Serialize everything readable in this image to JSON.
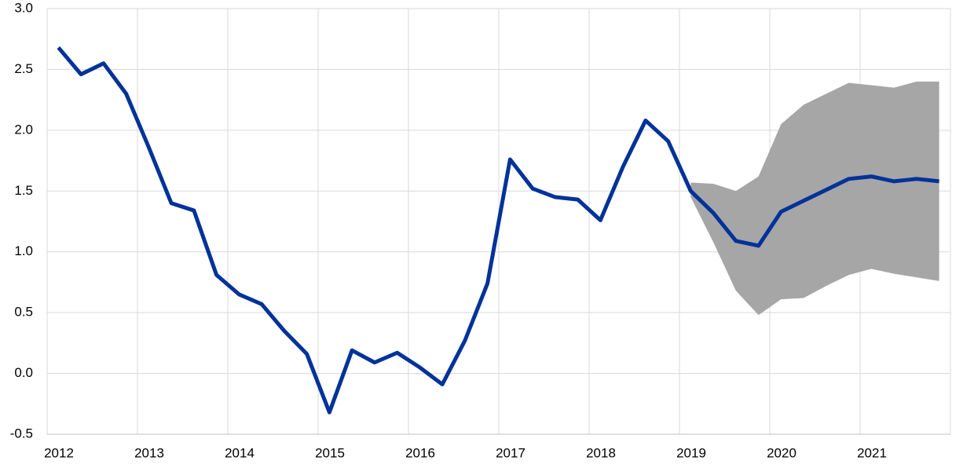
{
  "chart_data": {
    "type": "line",
    "x": [
      2012.125,
      2012.375,
      2012.625,
      2012.875,
      2013.125,
      2013.375,
      2013.625,
      2013.875,
      2014.125,
      2014.375,
      2014.625,
      2014.875,
      2015.125,
      2015.375,
      2015.625,
      2015.875,
      2016.125,
      2016.375,
      2016.625,
      2016.875,
      2017.125,
      2017.375,
      2017.625,
      2017.875,
      2018.125,
      2018.375,
      2018.625,
      2018.875,
      2019.125,
      2019.375,
      2019.625,
      2019.875,
      2020.125,
      2020.375,
      2020.625,
      2020.875,
      2021.125,
      2021.375,
      2021.625,
      2021.875
    ],
    "series": [
      {
        "color": "#003299",
        "values": [
          2.68,
          2.46,
          2.55,
          2.3,
          1.86,
          1.4,
          1.34,
          0.81,
          0.65,
          0.57,
          0.35,
          0.16,
          -0.32,
          0.19,
          0.09,
          0.17,
          0.05,
          -0.09,
          0.27,
          0.74,
          1.76,
          1.52,
          1.45,
          1.43,
          1.26,
          1.7,
          2.08,
          1.91,
          1.5,
          1.32,
          1.09,
          1.05,
          1.33,
          1.42,
          1.51,
          1.6,
          1.62,
          1.58,
          1.6,
          1.58
        ]
      }
    ],
    "band": {
      "color": "#a6a6a6",
      "upper": [
        null,
        null,
        null,
        null,
        null,
        null,
        null,
        null,
        null,
        null,
        null,
        null,
        null,
        null,
        null,
        null,
        null,
        null,
        null,
        null,
        null,
        null,
        null,
        null,
        null,
        null,
        null,
        null,
        1.57,
        1.56,
        1.5,
        1.62,
        2.05,
        2.21,
        2.3,
        2.39,
        2.37,
        2.35,
        2.4,
        2.4
      ],
      "lower": [
        null,
        null,
        null,
        null,
        null,
        null,
        null,
        null,
        null,
        null,
        null,
        null,
        null,
        null,
        null,
        null,
        null,
        null,
        null,
        null,
        null,
        null,
        null,
        null,
        null,
        null,
        null,
        null,
        1.45,
        1.08,
        0.68,
        0.48,
        0.61,
        0.62,
        0.72,
        0.81,
        0.86,
        0.82,
        0.79,
        0.76
      ]
    },
    "xlim": [
      2012,
      2022
    ],
    "xticks": [
      2012,
      2013,
      2014,
      2015,
      2016,
      2017,
      2018,
      2019,
      2020,
      2021
    ],
    "ylim": [
      -0.5,
      3.0
    ],
    "yticks": [
      {
        "value": -0.5,
        "label": "-0.5"
      },
      {
        "value": 0,
        "label": "0.0"
      },
      0.5,
      {
        "value": 1,
        "label": "1.0"
      },
      1.5,
      {
        "value": 2,
        "label": "2.0"
      },
      2.5,
      {
        "value": 3,
        "label": "3.0"
      }
    ],
    "grid": true
  }
}
